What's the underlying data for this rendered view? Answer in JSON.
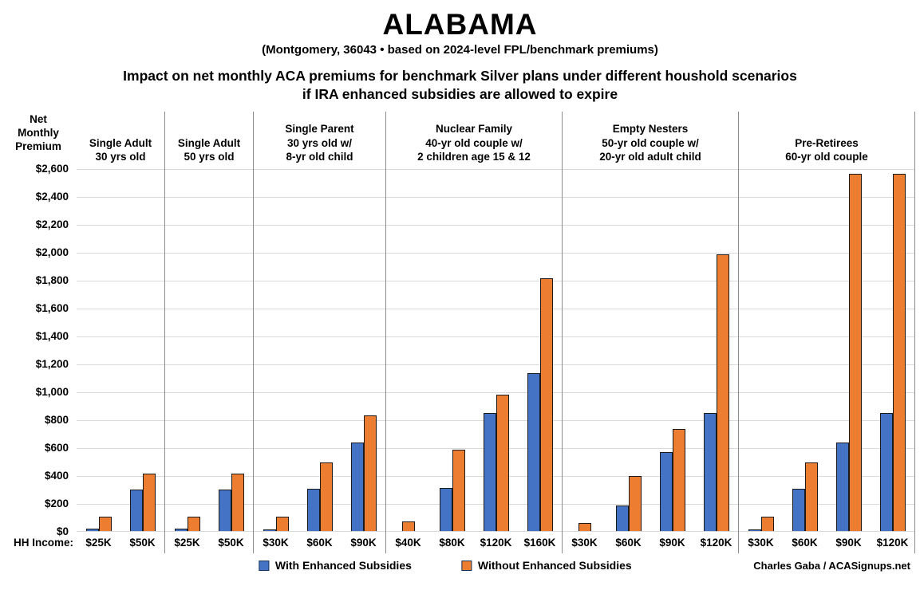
{
  "header": {
    "title": "ALABAMA",
    "subtitle": "(Montgomery, 36043 • based on 2024-level FPL/benchmark premiums)",
    "heading_line1": "Impact on net monthly ACA premiums for benchmark Silver plans under different houshold scenarios",
    "heading_line2": "if IRA enhanced subsidies are allowed to expire"
  },
  "chart_data": {
    "type": "bar",
    "title": "ALABAMA — Impact on net monthly ACA premiums for benchmark Silver plans under different houshold scenarios if IRA enhanced subsidies are allowed to expire",
    "y_axis_label": "Net Monthly Premium",
    "x_axis_label": "HH Income:",
    "ylim": [
      0,
      2600
    ],
    "grid": true,
    "y_ticks": [
      {
        "value": 0,
        "label": "$0"
      },
      {
        "value": 200,
        "label": "$200"
      },
      {
        "value": 400,
        "label": "$400"
      },
      {
        "value": 600,
        "label": "$600"
      },
      {
        "value": 800,
        "label": "$800"
      },
      {
        "value": 1000,
        "label": "$1,000"
      },
      {
        "value": 1200,
        "label": "$1,200"
      },
      {
        "value": 1400,
        "label": "$1,400"
      },
      {
        "value": 1600,
        "label": "$1,600"
      },
      {
        "value": 1800,
        "label": "$1,800"
      },
      {
        "value": 2000,
        "label": "$2,000"
      },
      {
        "value": 2200,
        "label": "$2,200"
      },
      {
        "value": 2400,
        "label": "$2,400"
      },
      {
        "value": 2600,
        "label": "$2,600"
      }
    ],
    "series_names": [
      "With Enhanced Subsidies",
      "Without Enhanced Subsidies"
    ],
    "colors": {
      "with_enhanced": "#4472C4",
      "without_enhanced": "#ED7D31"
    },
    "groups": [
      {
        "label_lines": [
          "Single Adult",
          "30 yrs old"
        ],
        "incomes": [
          "$25K",
          "$50K"
        ],
        "with_enhanced": [
          18,
          295
        ],
        "without_enhanced": [
          105,
          410
        ]
      },
      {
        "label_lines": [
          "Single Adult",
          "50 yrs old"
        ],
        "incomes": [
          "$25K",
          "$50K"
        ],
        "with_enhanced": [
          18,
          295
        ],
        "without_enhanced": [
          105,
          410
        ]
      },
      {
        "label_lines": [
          "Single Parent",
          "30 yrs old w/",
          "8-yr old child"
        ],
        "incomes": [
          "$30K",
          "$60K",
          "$90K"
        ],
        "with_enhanced": [
          5,
          305,
          635
        ],
        "without_enhanced": [
          105,
          490,
          830
        ]
      },
      {
        "label_lines": [
          "Nuclear Family",
          "40-yr old couple w/",
          "2 children age 15 & 12"
        ],
        "incomes": [
          "$40K",
          "$80K",
          "$120K",
          "$160K"
        ],
        "with_enhanced": [
          0,
          310,
          845,
          1130
        ],
        "without_enhanced": [
          70,
          585,
          975,
          1810
        ]
      },
      {
        "label_lines": [
          "Empty Nesters",
          "50-yr old couple w/",
          "20-yr old adult child"
        ],
        "incomes": [
          "$30K",
          "$60K",
          "$90K",
          "$120K"
        ],
        "with_enhanced": [
          0,
          180,
          565,
          845
        ],
        "without_enhanced": [
          55,
          395,
          730,
          1985
        ]
      },
      {
        "label_lines": [
          "Pre-Retirees",
          "60-yr old couple"
        ],
        "incomes": [
          "$30K",
          "$60K",
          "$90K",
          "$120K"
        ],
        "with_enhanced": [
          5,
          300,
          635,
          845
        ],
        "without_enhanced": [
          105,
          490,
          2560,
          2560
        ]
      }
    ]
  },
  "legend": {
    "with_label": "With Enhanced Subsidies",
    "without_label": "Without Enhanced Subsidies"
  },
  "credit": "Charles Gaba / ACASignups.net"
}
